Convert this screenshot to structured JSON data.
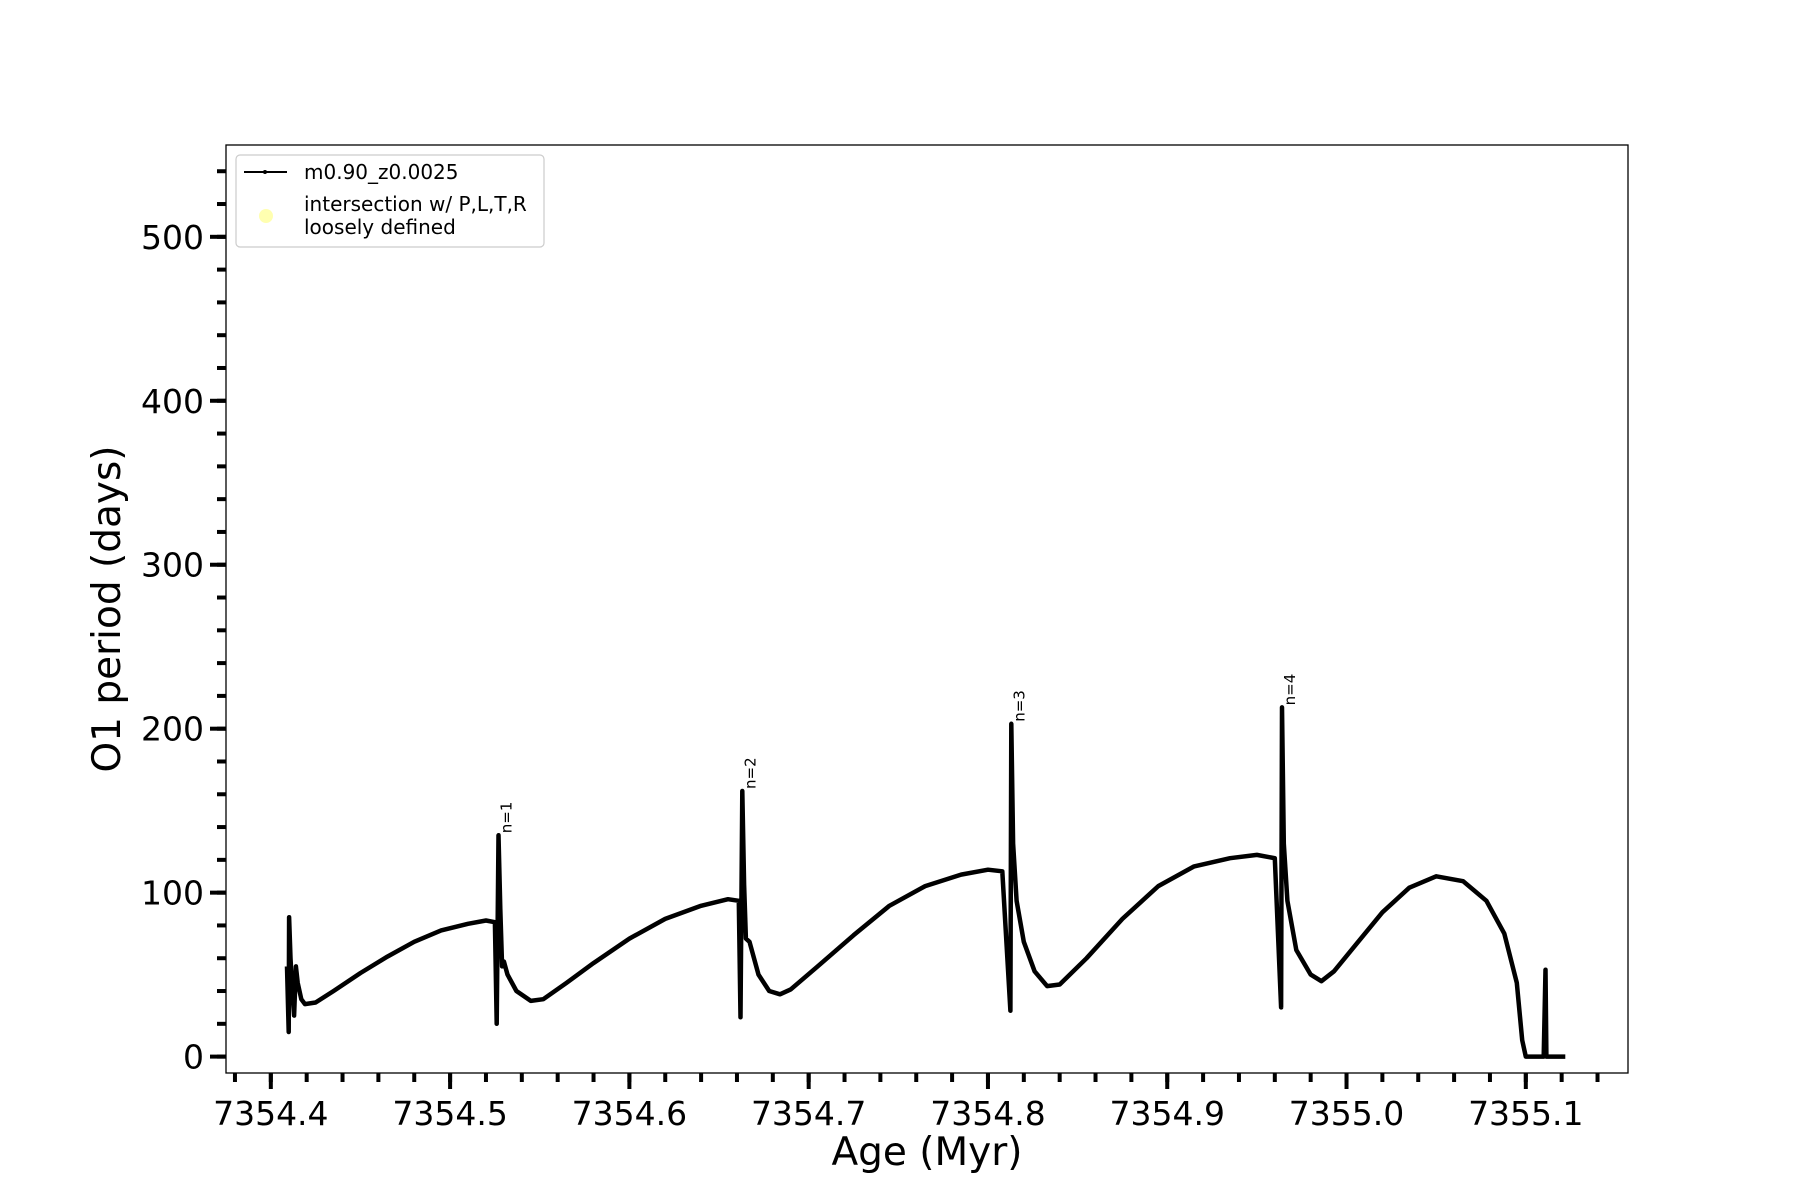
{
  "chart_data": {
    "type": "line",
    "title": "",
    "xlabel": "Age (Myr)",
    "ylabel": "O1 period (days)",
    "xlim": [
      7354.375,
      7355.157
    ],
    "ylim": [
      -10,
      556
    ],
    "xticks": [
      7354.4,
      7354.5,
      7354.6,
      7354.7,
      7354.8,
      7354.9,
      7355.0,
      7355.1
    ],
    "xtick_labels": [
      "7354.4",
      "7354.5",
      "7354.6",
      "7354.7",
      "7354.8",
      "7354.9",
      "7355.0",
      "7355.1"
    ],
    "xminor_step": 0.02,
    "yticks": [
      0,
      100,
      200,
      300,
      400,
      500
    ],
    "ytick_labels": [
      "0",
      "100",
      "200",
      "300",
      "400",
      "500"
    ],
    "yminor_step": 20,
    "grid": false,
    "legend_position": "top-left",
    "series": [
      {
        "name": "m0.90_z0.0025",
        "color": "#000000",
        "points": [
          [
            7354.409,
            55
          ],
          [
            7354.41,
            15
          ],
          [
            7354.4102,
            85
          ],
          [
            7354.411,
            60
          ],
          [
            7354.412,
            40
          ],
          [
            7354.413,
            25
          ],
          [
            7354.414,
            55
          ],
          [
            7354.415,
            45
          ],
          [
            7354.417,
            35
          ],
          [
            7354.419,
            32
          ],
          [
            7354.425,
            33
          ],
          [
            7354.435,
            40
          ],
          [
            7354.45,
            51
          ],
          [
            7354.465,
            61
          ],
          [
            7354.48,
            70
          ],
          [
            7354.495,
            77
          ],
          [
            7354.51,
            81
          ],
          [
            7354.52,
            83
          ],
          [
            7354.525,
            82
          ],
          [
            7354.526,
            20
          ],
          [
            7354.527,
            135
          ],
          [
            7354.528,
            90
          ],
          [
            7354.529,
            55
          ],
          [
            7354.53,
            58
          ],
          [
            7354.532,
            50
          ],
          [
            7354.537,
            40
          ],
          [
            7354.545,
            34
          ],
          [
            7354.552,
            35
          ],
          [
            7354.565,
            45
          ],
          [
            7354.58,
            57
          ],
          [
            7354.6,
            72
          ],
          [
            7354.62,
            84
          ],
          [
            7354.64,
            92
          ],
          [
            7354.655,
            96
          ],
          [
            7354.661,
            95
          ],
          [
            7354.662,
            24
          ],
          [
            7354.663,
            162
          ],
          [
            7354.664,
            105
          ],
          [
            7354.665,
            72
          ],
          [
            7354.667,
            70
          ],
          [
            7354.672,
            50
          ],
          [
            7354.678,
            40
          ],
          [
            7354.684,
            38
          ],
          [
            7354.69,
            41
          ],
          [
            7354.705,
            55
          ],
          [
            7354.725,
            74
          ],
          [
            7354.745,
            92
          ],
          [
            7354.765,
            104
          ],
          [
            7354.785,
            111
          ],
          [
            7354.8,
            114
          ],
          [
            7354.808,
            113
          ],
          [
            7354.8125,
            28
          ],
          [
            7354.813,
            203
          ],
          [
            7354.814,
            130
          ],
          [
            7354.816,
            95
          ],
          [
            7354.82,
            70
          ],
          [
            7354.826,
            52
          ],
          [
            7354.833,
            43
          ],
          [
            7354.84,
            44
          ],
          [
            7354.855,
            60
          ],
          [
            7354.875,
            84
          ],
          [
            7354.895,
            104
          ],
          [
            7354.915,
            116
          ],
          [
            7354.935,
            121
          ],
          [
            7354.95,
            123
          ],
          [
            7354.96,
            121
          ],
          [
            7354.9635,
            30
          ],
          [
            7354.964,
            213
          ],
          [
            7354.965,
            130
          ],
          [
            7354.967,
            95
          ],
          [
            7354.972,
            65
          ],
          [
            7354.98,
            50
          ],
          [
            7354.986,
            46
          ],
          [
            7354.993,
            52
          ],
          [
            7355.005,
            68
          ],
          [
            7355.02,
            88
          ],
          [
            7355.035,
            103
          ],
          [
            7355.05,
            110
          ],
          [
            7355.065,
            107
          ],
          [
            7355.078,
            95
          ],
          [
            7355.088,
            75
          ],
          [
            7355.095,
            45
          ],
          [
            7355.098,
            10
          ],
          [
            7355.1,
            0
          ],
          [
            7355.11,
            0
          ],
          [
            7355.111,
            53
          ],
          [
            7355.1115,
            0
          ],
          [
            7355.122,
            0
          ]
        ]
      },
      {
        "name": "intersection w/ P,L,T,R\nloosely defined",
        "name_lines": [
          "intersection w/ P,L,T,R",
          "loosely defined"
        ],
        "color": "#ffffb0",
        "marker": "circle",
        "points": []
      }
    ],
    "annotations": [
      {
        "text": "n=1",
        "x": 7354.527,
        "y": 135
      },
      {
        "text": "n=2",
        "x": 7354.663,
        "y": 162
      },
      {
        "text": "n=3",
        "x": 7354.813,
        "y": 203
      },
      {
        "text": "n=4",
        "x": 7354.964,
        "y": 213
      }
    ]
  }
}
